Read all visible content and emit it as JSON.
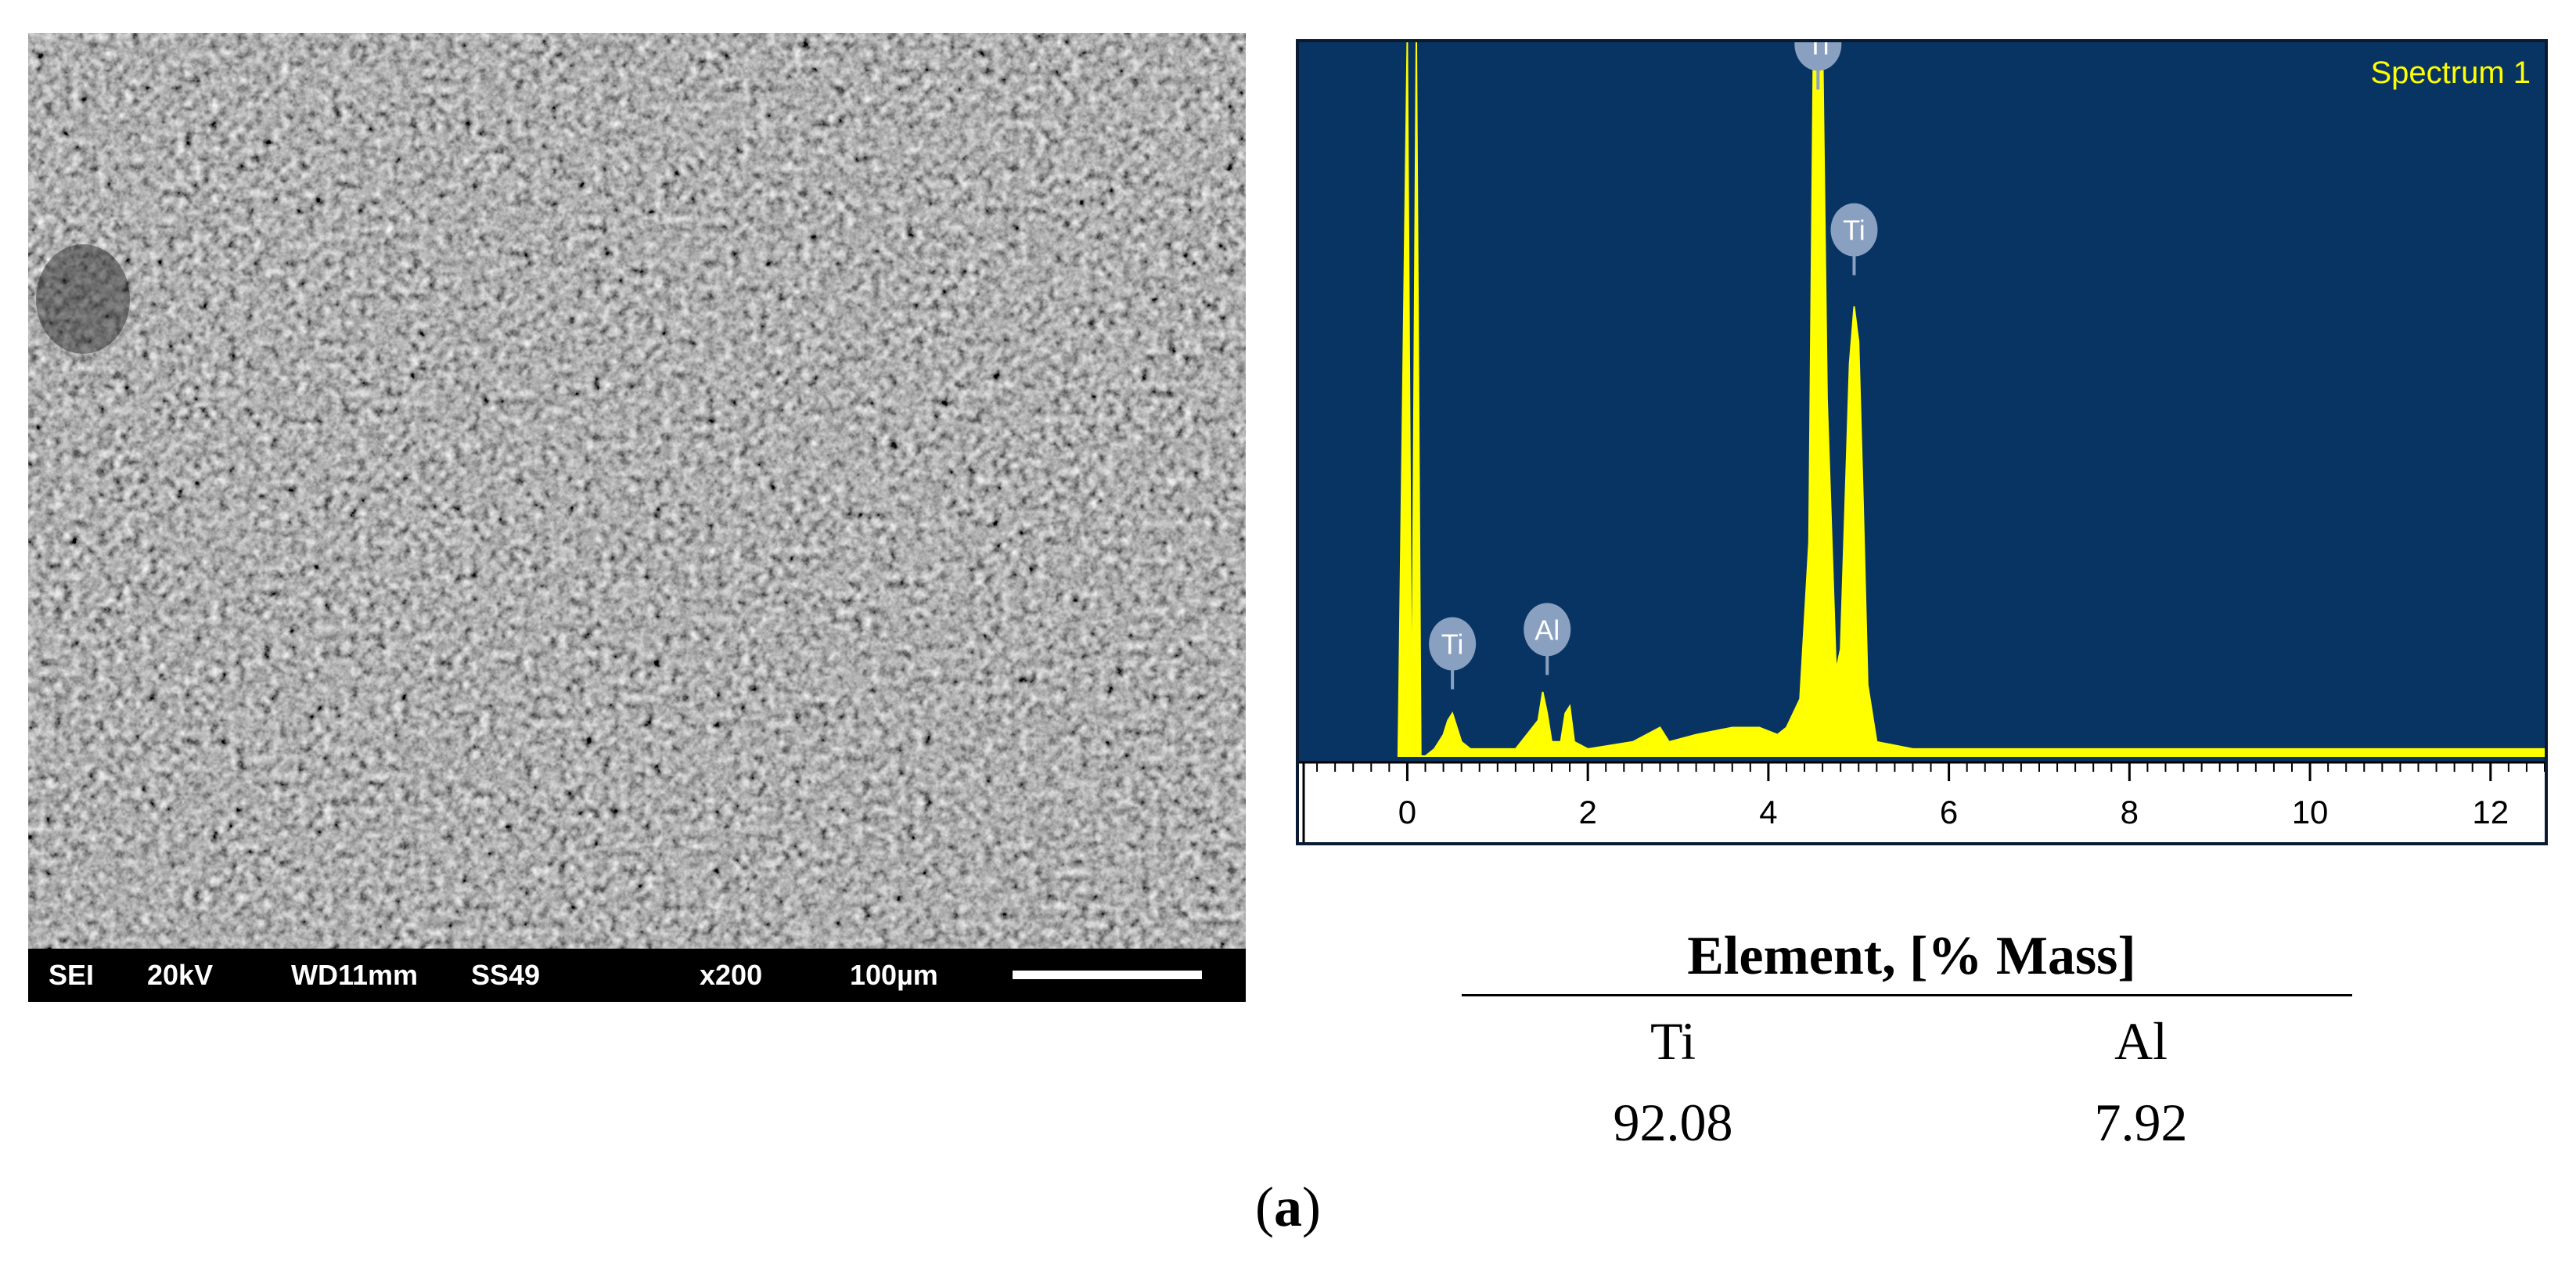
{
  "sem": {
    "info_bar": {
      "mode": "SEI",
      "voltage": "20kV",
      "working_distance": "WD11mm",
      "spot_size": "SS49",
      "magnification": "x200",
      "scale_label": "100µm"
    }
  },
  "chart_data": {
    "type": "line",
    "title": "Spectrum 1",
    "xlabel": "",
    "ylabel": "",
    "xlim": [
      -1.2,
      12.6
    ],
    "xticks": [
      0,
      2,
      4,
      6,
      8,
      10,
      12
    ],
    "grid": false,
    "colors": {
      "background": "#083464",
      "trace": "#ffff00",
      "label_bubble": "#8aa0c0",
      "title": "#ffff00"
    },
    "series": [
      {
        "values_note_free": true,
        "x": [
          -0.1,
          0.0,
          0.05,
          0.1,
          0.15,
          0.2,
          0.3,
          0.4,
          0.45,
          0.5,
          0.55,
          0.6,
          0.7,
          0.9,
          1.2,
          1.45,
          1.5,
          1.55,
          1.6,
          1.7,
          1.75,
          1.8,
          1.85,
          2.0,
          2.5,
          2.8,
          2.9,
          3.2,
          3.6,
          3.9,
          4.1,
          4.2,
          4.35,
          4.45,
          4.5,
          4.55,
          4.6,
          4.65,
          4.75,
          4.8,
          4.9,
          4.95,
          5.0,
          5.05,
          5.1,
          5.2,
          5.6,
          6.5,
          8.0,
          9.5,
          11.0,
          12.6
        ],
        "values": [
          0,
          100,
          0,
          100,
          0,
          0,
          1,
          3,
          5,
          6,
          4,
          2,
          1,
          1,
          1,
          5,
          9,
          6,
          2,
          2,
          6,
          7,
          2,
          1,
          2,
          4,
          2,
          3,
          4,
          4,
          3,
          4,
          8,
          30,
          100,
          100,
          100,
          50,
          12,
          15,
          55,
          63,
          58,
          35,
          10,
          2,
          1,
          1,
          1,
          1,
          1,
          1
        ]
      }
    ],
    "peak_labels": [
      {
        "text": "Ti",
        "x": 0.5,
        "y": 12
      },
      {
        "text": "Al",
        "x": 1.55,
        "y": 14
      },
      {
        "text": "Ti",
        "x": 4.55,
        "y": 96
      },
      {
        "text": "Ti",
        "x": 4.95,
        "y": 70
      }
    ]
  },
  "composition": {
    "header": "Element, [% Mass]",
    "elements": [
      {
        "symbol": "Ti",
        "value": "92.08"
      },
      {
        "symbol": "Al",
        "value": "7.92"
      }
    ]
  },
  "panel": {
    "open": "(",
    "letter": "a",
    "close": ")"
  }
}
